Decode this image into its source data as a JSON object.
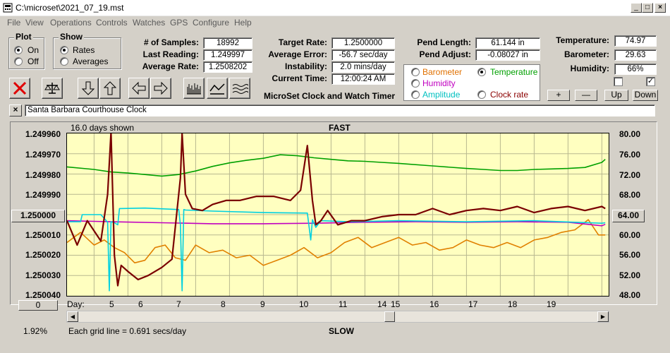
{
  "window": {
    "title": "C:\\microset\\2021_07_19.mst",
    "min_symbol": "_",
    "max_symbol": "□",
    "close_symbol": "×"
  },
  "menu": [
    "File",
    "View",
    "Operations",
    "Controls",
    "Watches",
    "GPS",
    "Configure",
    "Help"
  ],
  "plot_group": {
    "legend": "Plot",
    "options": [
      {
        "label": "On",
        "selected": true
      },
      {
        "label": "Off",
        "selected": false
      }
    ]
  },
  "show_group": {
    "legend": "Show",
    "options": [
      {
        "label": "Rates",
        "selected": true
      },
      {
        "label": "Averages",
        "selected": false
      }
    ]
  },
  "stats": {
    "samples_label": "# of Samples:",
    "samples": "18992",
    "last_reading_label": "Last Reading:",
    "last_reading": "1.249997",
    "average_rate_label": "Average Rate:",
    "average_rate": "1.2508202"
  },
  "rates": {
    "target_rate_label": "Target Rate:",
    "target_rate": "1.2500000",
    "average_error_label": "Average Error:",
    "average_error": "-56.7 sec/day",
    "instability_label": "Instability:",
    "instability": "2.0 mins/day",
    "current_time_label": "Current Time:",
    "current_time": "12:00:24 AM",
    "app_caption": "MicroSet Clock and Watch Timer"
  },
  "pendulum": {
    "length_label": "Pend Length:",
    "length": "61.144 in",
    "adjust_label": "Pend Adjust:",
    "adjust": "-0.08027 in"
  },
  "series_select": [
    {
      "label": "Barometer",
      "selected": false,
      "color": "#e07000"
    },
    {
      "label": "Temperature",
      "selected": true,
      "color": "#00a000"
    },
    {
      "label": "Humidity",
      "selected": false,
      "color": "#c000c0"
    },
    {
      "label": "Amplitude",
      "selected": false,
      "color": "#00c0c0"
    },
    {
      "label": "Clock rate",
      "selected": false,
      "color": "#8b0000"
    }
  ],
  "environment": {
    "temperature_label": "Temperature:",
    "temperature": "74.97",
    "barometer_label": "Barometer:",
    "barometer": "29.63",
    "humidity_label": "Humidity:",
    "humidity": "66%",
    "check1": false,
    "check2": true,
    "plus_label": "+",
    "minus_label": "—",
    "up_label": "Up",
    "down_label": "Down"
  },
  "toolbar_icons": [
    "delete-icon",
    "balance-scale-icon",
    "arrow-down-icon",
    "arrow-up-icon",
    "arrow-left-icon",
    "arrow-right-icon",
    "bar-chart-icon",
    "line-chart-icon",
    "wave-chart-icon"
  ],
  "clock_name": "Santa Barbara Courthouse Clock",
  "close_name_label": "×",
  "chart": {
    "days_shown": "16.0 days shown",
    "top_label": "FAST",
    "bottom_label": "SLOW",
    "y_left_ticks": [
      "1.249960",
      "1.249970",
      "1.249980",
      "1.249990",
      "1.250000",
      "1.250010",
      "1.250020",
      "1.250030",
      "1.250040"
    ],
    "y_right_ticks": [
      "80.00",
      "76.00",
      "72.00",
      "68.00",
      "64.00",
      "60.00",
      "56.00",
      "52.00",
      "48.00"
    ],
    "y_left_button": "1.250000",
    "y_right_button": "64.00",
    "day_label": "Day:",
    "day_ticks": [
      "5",
      "6",
      "7",
      "8",
      "9",
      "10",
      "11",
      "14",
      "15",
      "16",
      "17",
      "18",
      "19"
    ],
    "zero_button": "0",
    "scroll_percent": "1.92%",
    "grid_note": "Each grid line = 0.691 secs/day"
  },
  "chart_data": {
    "type": "line",
    "title": "",
    "ylabel_left": "",
    "ylabel_right": "",
    "ylim_left": [
      1.24996,
      1.25004
    ],
    "ylim_right": [
      48,
      80
    ],
    "xlim": [
      4.2,
      20.2
    ],
    "grid": true,
    "series": [
      {
        "name": "Clock rate",
        "color": "#7a0000",
        "axis": "left",
        "x": [
          4.2,
          4.5,
          4.8,
          5.0,
          5.2,
          5.4,
          5.5,
          5.6,
          5.7,
          5.8,
          6.0,
          6.3,
          6.6,
          7.0,
          7.3,
          7.55,
          7.6,
          7.7,
          7.9,
          8.2,
          8.5,
          8.9,
          9.3,
          9.8,
          10.3,
          10.8,
          11.1,
          11.3,
          11.45,
          11.55,
          11.7,
          11.9,
          12.2,
          12.6,
          13.0,
          13.5,
          14.0,
          14.5,
          15.0,
          15.5,
          16.0,
          16.5,
          17.0,
          17.5,
          18.0,
          18.5,
          19.0,
          19.5,
          20.0,
          20.1
        ],
        "y": [
          1.250003,
          1.250015,
          1.250003,
          1.250008,
          1.250013,
          1.24999,
          1.249958,
          1.25002,
          1.250035,
          1.250025,
          1.250028,
          1.250032,
          1.25003,
          1.250026,
          1.250022,
          1.249982,
          1.24996,
          1.24999,
          1.249997,
          1.249998,
          1.249995,
          1.249993,
          1.249993,
          1.249991,
          1.249991,
          1.249993,
          1.249988,
          1.249966,
          1.249993,
          1.250005,
          1.250003,
          1.249998,
          1.250005,
          1.250003,
          1.250003,
          1.250001,
          1.25,
          1.25,
          1.249997,
          1.25,
          1.249998,
          1.249997,
          1.249998,
          1.249996,
          1.249999,
          1.249997,
          1.249996,
          1.249998,
          1.249996,
          1.249997
        ]
      },
      {
        "name": "Temperature",
        "color": "#00a000",
        "axis": "right",
        "x": [
          4.2,
          5.0,
          5.5,
          6.0,
          6.5,
          7.0,
          7.5,
          8.0,
          8.5,
          9.0,
          9.5,
          10.0,
          10.5,
          11.0,
          11.5,
          12.0,
          12.5,
          13.0,
          13.5,
          14.0,
          15.0,
          16.0,
          16.5,
          17.0,
          17.5,
          18.0,
          18.5,
          19.0,
          19.5,
          20.0,
          20.1
        ],
        "y": [
          73.4,
          72.9,
          72.4,
          72.2,
          71.9,
          71.6,
          71.9,
          72.6,
          73.5,
          74.2,
          74.7,
          75.1,
          75.8,
          75.6,
          75.2,
          74.9,
          74.6,
          74.5,
          74.3,
          74.1,
          73.6,
          73.1,
          72.9,
          72.7,
          72.7,
          72.9,
          73.0,
          73.1,
          73.3,
          74.3,
          74.9
        ]
      },
      {
        "name": "Humidity",
        "color": "#c000c0",
        "axis": "right",
        "x": [
          4.2,
          5.5,
          7.0,
          8.5,
          10.0,
          11.5,
          13.0,
          14.5,
          16.0,
          17.5,
          19.0,
          20.0,
          20.1
        ],
        "y": [
          62.8,
          62.6,
          62.4,
          62.2,
          62.2,
          62.3,
          62.5,
          62.6,
          62.5,
          62.6,
          62.5,
          61.8,
          62.1
        ]
      },
      {
        "name": "Amplitude",
        "color": "#00d0e0",
        "axis": "right",
        "x": [
          4.2,
          4.6,
          4.65,
          5.2,
          5.4,
          5.45,
          5.5,
          5.6,
          5.7,
          5.75,
          6.5,
          7.5,
          7.55,
          7.6,
          7.65,
          7.7,
          8.5,
          10.0,
          11.3,
          11.4,
          11.45,
          11.55,
          11.7,
          12.5,
          14.0,
          16.0,
          18.0,
          20.0,
          20.1
        ],
        "y": [
          62.6,
          62.6,
          64.0,
          64.0,
          62.5,
          49.0,
          62.6,
          62.4,
          62.0,
          65.2,
          65.3,
          65.0,
          62.0,
          49.0,
          65.0,
          64.9,
          64.7,
          64.4,
          64.3,
          59.0,
          63.0,
          61.5,
          62.8,
          62.6,
          62.8,
          62.6,
          62.8,
          62.3,
          62.4
        ]
      },
      {
        "name": "Barometer",
        "color": "#e08000",
        "axis": "right",
        "x": [
          4.2,
          4.6,
          5.0,
          5.3,
          5.6,
          5.9,
          6.2,
          6.5,
          6.8,
          7.1,
          7.4,
          7.7,
          8.0,
          8.4,
          8.8,
          9.2,
          9.6,
          10.0,
          10.4,
          10.8,
          11.2,
          11.6,
          12.0,
          12.4,
          12.8,
          13.2,
          13.6,
          14.0,
          14.4,
          14.8,
          15.2,
          15.6,
          16.0,
          16.4,
          16.8,
          17.2,
          17.6,
          18.0,
          18.4,
          18.8,
          19.2,
          19.6,
          19.9,
          20.1
        ],
        "y": [
          58.5,
          60.5,
          58.0,
          59.0,
          57.5,
          56.5,
          54.5,
          55.0,
          57.5,
          58.0,
          55.5,
          55.0,
          58.0,
          56.5,
          57.0,
          55.5,
          56.0,
          54.0,
          55.0,
          56.0,
          57.5,
          55.5,
          56.5,
          58.5,
          59.5,
          57.5,
          58.5,
          59.5,
          58.0,
          58.5,
          57.0,
          57.5,
          59.0,
          58.0,
          57.5,
          58.5,
          57.5,
          59.0,
          59.5,
          60.5,
          61.0,
          63.0,
          60.0,
          60.0
        ]
      }
    ]
  }
}
